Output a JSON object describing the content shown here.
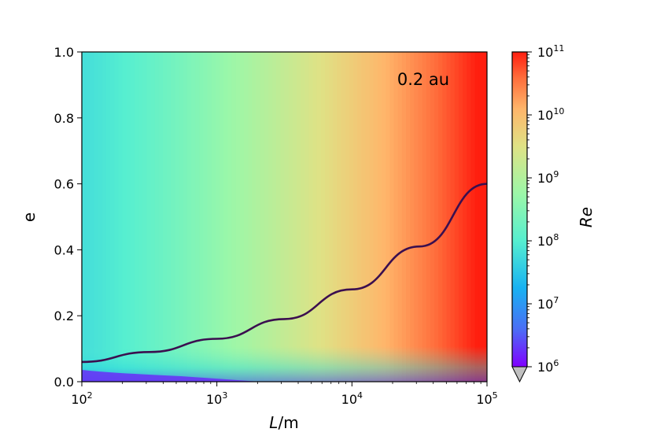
{
  "chart_data": {
    "type": "heatmap",
    "annotation": "0.2 au",
    "xlabel_italic": "L",
    "xlabel_unit": "/m",
    "ylabel": "e",
    "colorbar_label": "Re",
    "x_scale": "log",
    "x_range": [
      100,
      100000
    ],
    "x_ticks": [
      {
        "value": 100,
        "base": "10",
        "exp": "2"
      },
      {
        "value": 1000,
        "base": "10",
        "exp": "3"
      },
      {
        "value": 10000,
        "base": "10",
        "exp": "4"
      },
      {
        "value": 100000,
        "base": "10",
        "exp": "5"
      }
    ],
    "y_range": [
      0.0,
      1.0
    ],
    "y_ticks": [
      "0.0",
      "0.2",
      "0.4",
      "0.6",
      "0.8",
      "1.0"
    ],
    "colorbar_scale": "log",
    "colorbar_range": [
      1000000,
      100000000000
    ],
    "colorbar_ticks": [
      {
        "value": 1000000,
        "base": "10",
        "exp": "6"
      },
      {
        "value": 10000000,
        "base": "10",
        "exp": "7"
      },
      {
        "value": 100000000,
        "base": "10",
        "exp": "8"
      },
      {
        "value": 1000000000,
        "base": "10",
        "exp": "9"
      },
      {
        "value": 10000000000,
        "base": "10",
        "exp": "10"
      },
      {
        "value": 100000000000,
        "base": "10",
        "exp": "11"
      }
    ],
    "colorbar_extend": "min",
    "colormap": "rainbow",
    "contour_line": {
      "color": "#3b0f4f",
      "x": [
        100,
        316,
        1000,
        3162,
        10000,
        31623,
        100000
      ],
      "y": [
        0.06,
        0.09,
        0.13,
        0.19,
        0.28,
        0.41,
        0.6
      ]
    }
  }
}
